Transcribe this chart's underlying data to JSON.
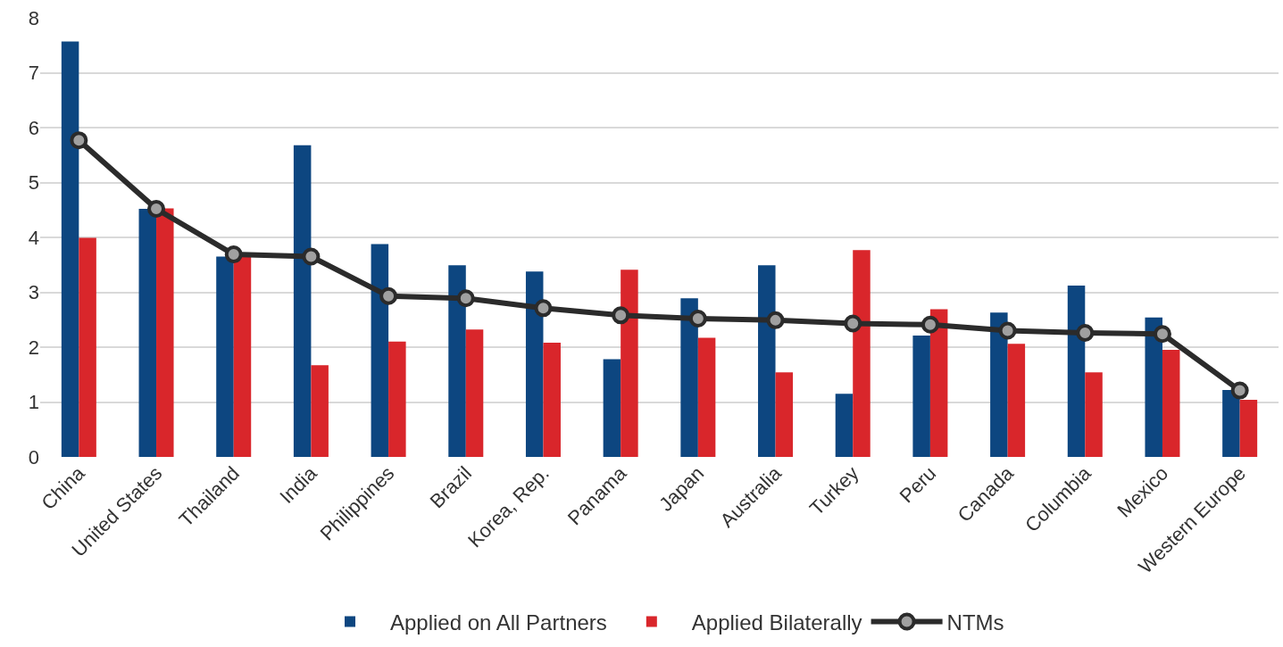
{
  "chart_data": {
    "type": "bar",
    "categories": [
      "China",
      "United States",
      "Thailand",
      "India",
      "Philippines",
      "Brazil",
      "Korea, Rep.",
      "Panama",
      "Japan",
      "Australia",
      "Turkey",
      "Peru",
      "Canada",
      "Columbia",
      "Mexico",
      "Western Europe"
    ],
    "series": [
      {
        "name": "Applied on All Partners",
        "color": "#0d4680",
        "values": [
          7.57,
          4.52,
          3.65,
          5.68,
          3.88,
          3.49,
          3.38,
          1.78,
          2.89,
          3.49,
          1.15,
          2.21,
          2.63,
          3.12,
          2.54,
          1.22
        ]
      },
      {
        "name": "Applied Bilaterally",
        "color": "#d9262b",
        "values": [
          3.99,
          4.53,
          3.65,
          1.67,
          2.1,
          2.32,
          2.08,
          3.41,
          2.17,
          1.54,
          3.77,
          2.69,
          2.06,
          1.54,
          1.95,
          1.04
        ]
      },
      {
        "name": "NTMs",
        "type": "line",
        "color": "#2b2b2b",
        "marker": "circle",
        "values": [
          5.77,
          4.52,
          3.69,
          3.65,
          2.93,
          2.89,
          2.71,
          2.58,
          2.52,
          2.49,
          2.43,
          2.41,
          2.3,
          2.26,
          2.24,
          1.21
        ]
      }
    ],
    "ylim": [
      0,
      8
    ],
    "yticks": [
      0,
      1,
      2,
      3,
      4,
      5,
      6,
      7,
      8
    ],
    "grid": "y",
    "legend": "bottom"
  }
}
